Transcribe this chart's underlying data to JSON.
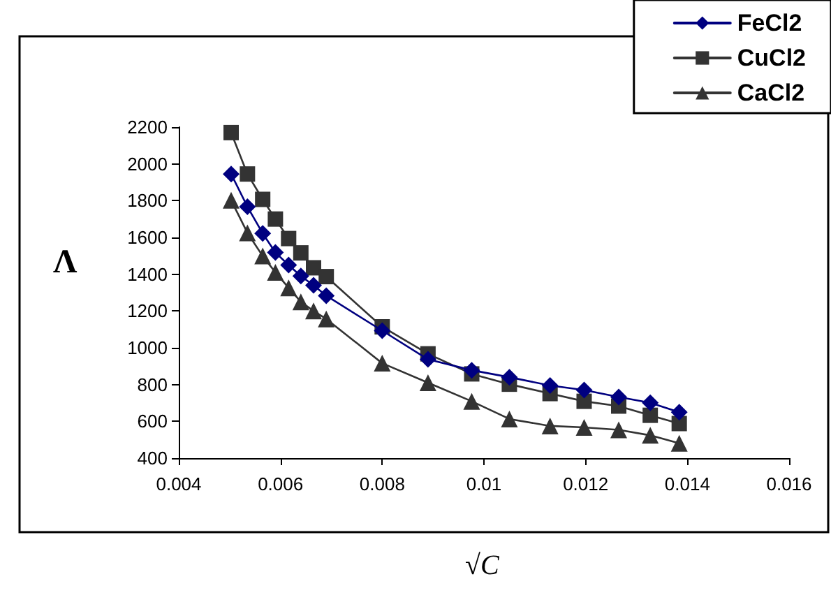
{
  "chart_data": {
    "type": "line",
    "xlabel": "√C",
    "ylabel": "Λ",
    "x": [
      0.00503,
      0.00535,
      0.00565,
      0.0059,
      0.00616,
      0.0064,
      0.00665,
      0.0069,
      0.008,
      0.0089,
      0.00976,
      0.0105,
      0.0113,
      0.01197,
      0.01265,
      0.01327,
      0.01384
    ],
    "series": [
      {
        "name": "FeCl2",
        "color": "#000080",
        "marker": "diamond",
        "values": [
          1945,
          1767,
          1622,
          1518,
          1450,
          1390,
          1340,
          1283,
          1093,
          937,
          878,
          840,
          795,
          770,
          732,
          701,
          650
        ]
      },
      {
        "name": "CuCl2",
        "color": "#333333",
        "marker": "square",
        "values": [
          2170,
          1945,
          1807,
          1700,
          1594,
          1516,
          1435,
          1387,
          1114,
          967,
          858,
          802,
          751,
          709,
          683,
          633,
          588
        ]
      },
      {
        "name": "CaCl2",
        "color": "#333333",
        "marker": "triangle",
        "values": [
          1802,
          1625,
          1499,
          1410,
          1326,
          1250,
          1200,
          1157,
          916,
          810,
          709,
          613,
          575,
          567,
          554,
          524,
          481
        ]
      }
    ],
    "xlim": [
      0.004,
      0.016
    ],
    "xticks": [
      0.004,
      0.006,
      0.008,
      0.01,
      0.012,
      0.014,
      0.016
    ],
    "ylim": [
      400,
      2200
    ],
    "yticks": [
      400,
      600,
      800,
      1000,
      1200,
      1400,
      1600,
      1800,
      2000,
      2200
    ],
    "grid": false,
    "legend": "top right",
    "line_style": "solid"
  }
}
